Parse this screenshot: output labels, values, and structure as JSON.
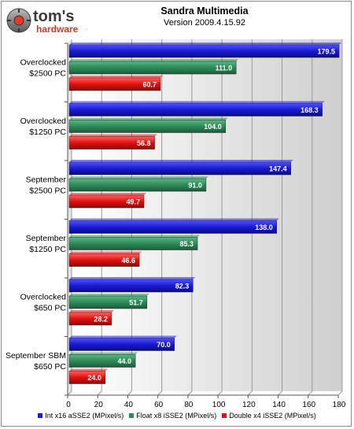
{
  "brand": {
    "logo_text_top": "tom's",
    "logo_text_bottom": "hardware"
  },
  "chart_data": {
    "type": "bar",
    "orientation": "horizontal",
    "title": "Sandra Multimedia",
    "subtitle": "Version 2009.4.15.92",
    "categories": [
      [
        "Overclocked",
        "$2500 PC"
      ],
      [
        "Overclocked",
        "$1250 PC"
      ],
      [
        "September",
        "$2500 PC"
      ],
      [
        "September",
        "$1250 PC"
      ],
      [
        "Overclocked",
        "$650 PC"
      ],
      [
        "September SBM",
        "$650 PC"
      ]
    ],
    "series": [
      {
        "name": "Int x16 aSSE2 (MPixel/s)",
        "color": "#1a1ad2",
        "values": [
          179.5,
          168.3,
          147.4,
          138.0,
          82.3,
          70.0
        ]
      },
      {
        "name": "Float x8 iSSE2 (MPixel/s)",
        "color": "#2e8a5a",
        "values": [
          111.0,
          104.0,
          91.0,
          85.3,
          51.7,
          44.0
        ]
      },
      {
        "name": "Double x4 iSSE2 (MPixel/s)",
        "color": "#e01010",
        "values": [
          60.7,
          56.8,
          49.7,
          46.6,
          28.2,
          24.0
        ]
      }
    ],
    "xlim": [
      0,
      180
    ],
    "xticks": [
      0,
      20,
      40,
      60,
      80,
      100,
      120,
      140,
      160,
      180
    ],
    "xlabel": "",
    "ylabel": "",
    "grid": true,
    "legend": "bottom"
  }
}
